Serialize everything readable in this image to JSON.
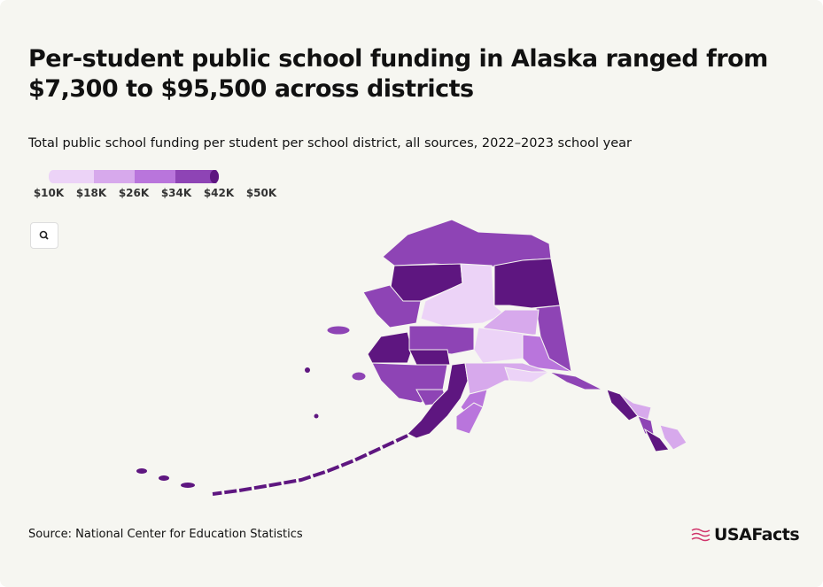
{
  "header": {
    "title": "Per-student public school funding in Alaska ranged from $7,300 to $95,500 across districts",
    "subtitle": "Total public school funding per student per school district, all sources, 2022–2023 school year"
  },
  "legend": {
    "labels": [
      "$10K",
      "$18K",
      "$26K",
      "$34K",
      "$42K",
      "$50K"
    ],
    "colors": [
      "#ecd3f7",
      "#d7a9ec",
      "#b975dc",
      "#8e44b5",
      "#5e1680"
    ]
  },
  "source": "Source: National Center for Education Statistics",
  "logo": "USAFacts"
}
